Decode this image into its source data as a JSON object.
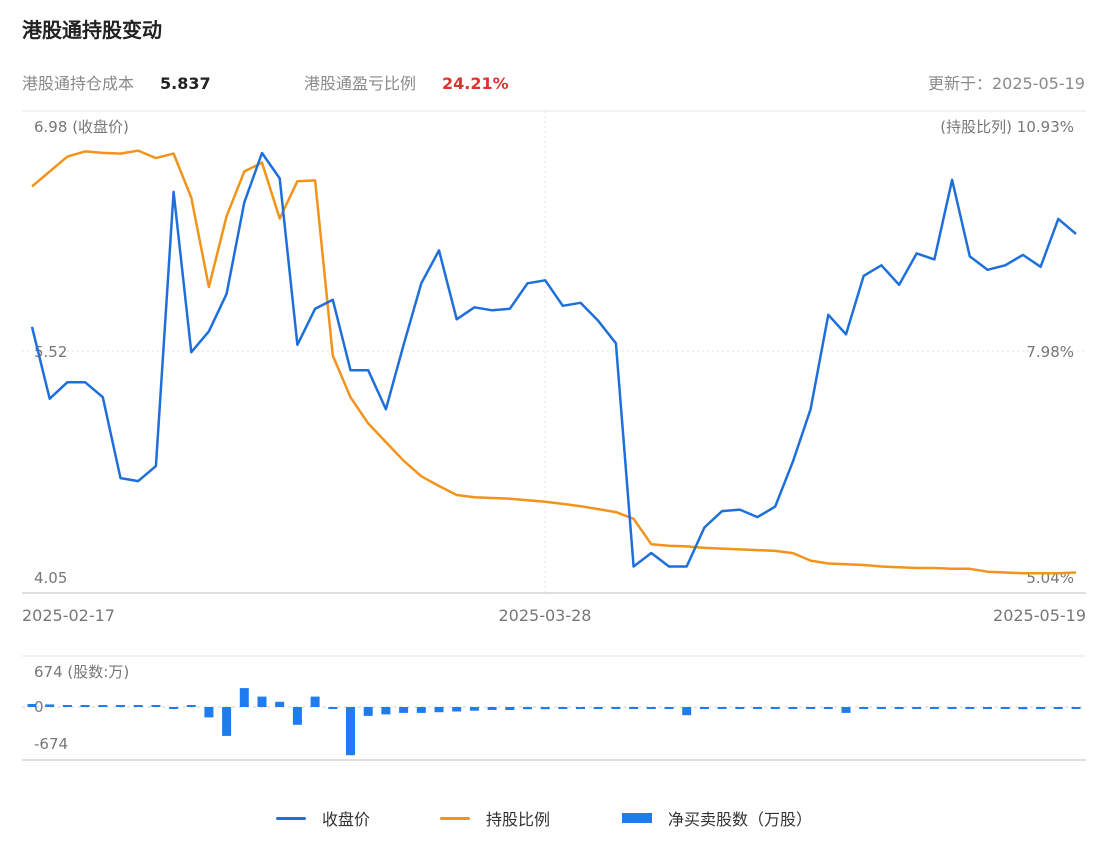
{
  "header": {
    "title": "港股通持股变动",
    "cost_label": "港股通持仓成本",
    "cost_value": "5.837",
    "pl_label": "港股通盈亏比例",
    "pl_value": "24.21%",
    "updated": "更新于：2025-05-19"
  },
  "colors": {
    "price": "#1f6fdb",
    "holding": "#f2931b",
    "netbuy": "#1f7cf0",
    "loss": "#e0322c"
  },
  "legend": {
    "price": "收盘价",
    "holding": "持股比例",
    "netbuy": "净买卖股数（万股）"
  },
  "chart_data": [
    {
      "type": "line",
      "ylabel": "(收盘价)",
      "y2label": "(持股比列)",
      "ytick_labels": [
        "6.98",
        "5.52",
        "4.05"
      ],
      "y2tick_labels": [
        "10.93%",
        "7.98%",
        "5.04%"
      ],
      "ylim": [
        4.05,
        6.98
      ],
      "y2lim": [
        5.04,
        10.93
      ],
      "grid": true,
      "xtick_labels": [
        "2025-02-17",
        "2025-03-28",
        "2025-05-19"
      ],
      "series": [
        {
          "name": "收盘价",
          "axis": "left",
          "values": [
            5.68,
            5.2,
            5.31,
            5.31,
            5.21,
            4.67,
            4.65,
            4.75,
            6.58,
            5.51,
            5.65,
            5.9,
            6.51,
            6.84,
            6.67,
            5.56,
            5.8,
            5.86,
            5.39,
            5.39,
            5.13,
            5.56,
            5.97,
            6.19,
            5.73,
            5.81,
            5.79,
            5.8,
            5.97,
            5.99,
            5.82,
            5.84,
            5.72,
            5.57,
            4.08,
            4.17,
            4.08,
            4.08,
            4.34,
            4.45,
            4.46,
            4.41,
            4.48,
            4.78,
            5.13,
            5.76,
            5.63,
            6.02,
            6.09,
            5.96,
            6.17,
            6.13,
            6.66,
            6.15,
            6.06,
            6.09,
            6.16,
            6.08,
            6.4,
            6.3
          ]
        },
        {
          "name": "持股比例",
          "axis": "right",
          "values": [
            10.2,
            10.4,
            10.6,
            10.67,
            10.65,
            10.64,
            10.68,
            10.58,
            10.64,
            10.05,
            8.85,
            9.8,
            10.4,
            10.52,
            9.77,
            10.27,
            10.28,
            7.93,
            7.37,
            7.02,
            6.77,
            6.52,
            6.31,
            6.18,
            6.06,
            6.03,
            6.02,
            6.01,
            5.99,
            5.97,
            5.94,
            5.91,
            5.87,
            5.83,
            5.74,
            5.4,
            5.38,
            5.37,
            5.35,
            5.34,
            5.33,
            5.32,
            5.31,
            5.28,
            5.18,
            5.14,
            5.13,
            5.12,
            5.1,
            5.09,
            5.08,
            5.08,
            5.07,
            5.07,
            5.03,
            5.02,
            5.01,
            5.01,
            5.01,
            5.02
          ]
        }
      ]
    },
    {
      "type": "bar",
      "ylabel": "(股数:万)",
      "ytick_labels": [
        "674",
        "0",
        "-674"
      ],
      "ylim": [
        -674,
        674
      ],
      "series": [
        {
          "name": "净买卖股数（万股）",
          "values": [
            40,
            35,
            25,
            15,
            10,
            0,
            8,
            10,
            -25,
            15,
            -140,
            -390,
            255,
            140,
            70,
            -240,
            140,
            -20,
            -650,
            -120,
            -100,
            -80,
            -80,
            -70,
            -60,
            -50,
            -40,
            -40,
            -30,
            -30,
            -20,
            -20,
            -20,
            -20,
            -20,
            -20,
            -20,
            -110,
            -10,
            -10,
            -10,
            -10,
            -10,
            -10,
            -10,
            -10,
            -80,
            -20,
            -10,
            -10,
            -10,
            -10,
            -10,
            -10,
            -10,
            -10,
            -30,
            -10,
            -10,
            -10
          ]
        }
      ]
    }
  ]
}
